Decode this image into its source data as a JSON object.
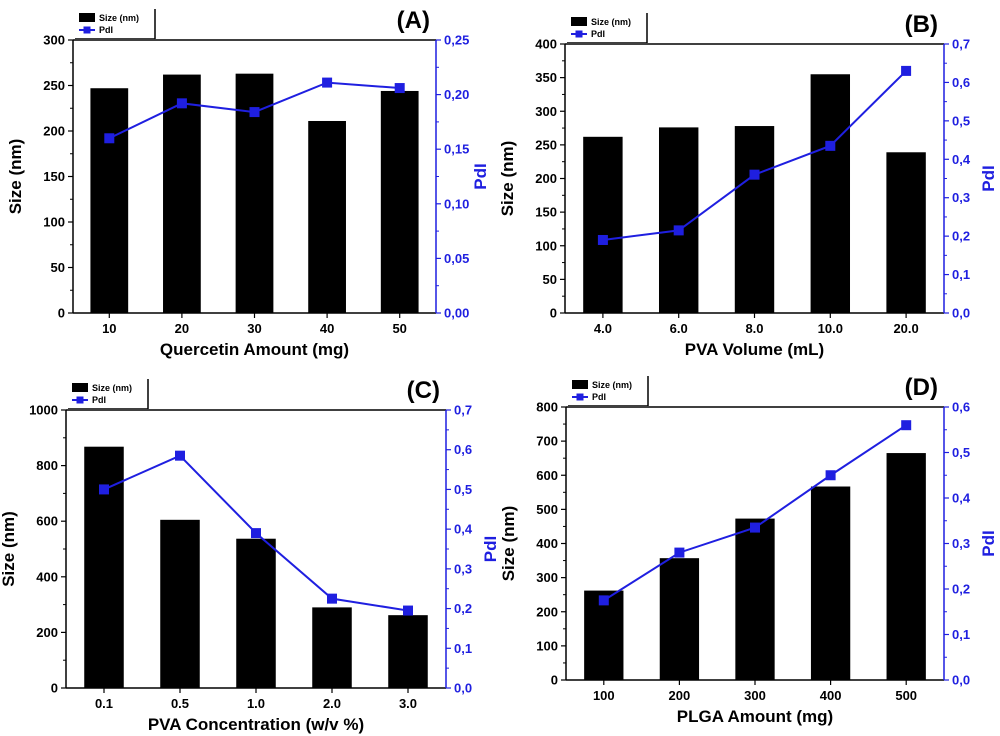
{
  "chart_data": [
    {
      "type": "bar",
      "panel": "(A)",
      "categories": [
        "10",
        "20",
        "30",
        "40",
        "50"
      ],
      "series": [
        {
          "name": "Size (nm)",
          "values": [
            247,
            262,
            263,
            211,
            244
          ],
          "color": "#000000"
        },
        {
          "name": "PdI",
          "type": "line",
          "axis": "right",
          "values": [
            0.16,
            0.192,
            0.184,
            0.211,
            0.206
          ],
          "color": "#1f1fe0"
        }
      ],
      "xlabel": "Quercetin Amount (mg)",
      "ylabel": "Size (nm)",
      "y2label": "PdI",
      "ylim": [
        0,
        300
      ],
      "yticks": [
        "0",
        "50",
        "100",
        "150",
        "200",
        "250",
        "300"
      ],
      "y2lim": [
        0,
        0.25
      ],
      "y2ticks": [
        "0,00",
        "0,05",
        "0,10",
        "0,15",
        "0,20",
        "0,25"
      ],
      "legend": "top-left"
    },
    {
      "type": "bar",
      "panel": "(B)",
      "categories": [
        "4.0",
        "6.0",
        "8.0",
        "10.0",
        "20.0"
      ],
      "series": [
        {
          "name": "Size (nm)",
          "values": [
            262,
            276,
            278,
            355,
            239
          ],
          "color": "#000000"
        },
        {
          "name": "PdI",
          "type": "line",
          "axis": "right",
          "values": [
            0.19,
            0.215,
            0.36,
            0.435,
            0.63
          ],
          "color": "#1f1fe0"
        }
      ],
      "xlabel": "PVA Volume (mL)",
      "ylabel": "Size (nm)",
      "y2label": "PdI",
      "ylim": [
        0,
        400
      ],
      "yticks": [
        "0",
        "50",
        "100",
        "150",
        "200",
        "250",
        "300",
        "350",
        "400"
      ],
      "y2lim": [
        0,
        0.7
      ],
      "y2ticks": [
        "0,0",
        "0,1",
        "0,2",
        "0,3",
        "0,4",
        "0,5",
        "0,6",
        "0,7"
      ],
      "legend": "top-left"
    },
    {
      "type": "bar",
      "panel": "(C)",
      "categories": [
        "0.1",
        "0.5",
        "1.0",
        "2.0",
        "3.0"
      ],
      "series": [
        {
          "name": "Size (nm)",
          "values": [
            868,
            605,
            537,
            290,
            262
          ],
          "color": "#000000"
        },
        {
          "name": "PdI",
          "type": "line",
          "axis": "right",
          "values": [
            0.5,
            0.585,
            0.39,
            0.225,
            0.195
          ],
          "color": "#1f1fe0"
        }
      ],
      "xlabel": "PVA Concentration (w/v %)",
      "ylabel": "Size (nm)",
      "y2label": "PdI",
      "ylim": [
        0,
        1000
      ],
      "yticks": [
        "0",
        "200",
        "400",
        "600",
        "800",
        "1000"
      ],
      "y2lim": [
        0,
        0.7
      ],
      "y2ticks": [
        "0,0",
        "0,1",
        "0,2",
        "0,3",
        "0,4",
        "0,5",
        "0,6",
        "0,7"
      ],
      "legend": "top-left"
    },
    {
      "type": "bar",
      "panel": "(D)",
      "categories": [
        "100",
        "200",
        "300",
        "400",
        "500"
      ],
      "series": [
        {
          "name": "Size (nm)",
          "values": [
            262,
            357,
            473,
            567,
            665
          ],
          "color": "#000000"
        },
        {
          "name": "PdI",
          "type": "line",
          "axis": "right",
          "values": [
            0.175,
            0.28,
            0.335,
            0.45,
            0.56
          ],
          "color": "#1f1fe0"
        }
      ],
      "xlabel": "PLGA  Amount (mg)",
      "ylabel": "Size (nm)",
      "y2label": "PdI",
      "ylim": [
        0,
        800
      ],
      "yticks": [
        "0",
        "100",
        "200",
        "300",
        "400",
        "500",
        "600",
        "700",
        "800"
      ],
      "y2lim": [
        0,
        0.6
      ],
      "y2ticks": [
        "0,0",
        "0,1",
        "0,2",
        "0,3",
        "0,4",
        "0,5",
        "0,6"
      ],
      "legend": "top-left"
    }
  ]
}
